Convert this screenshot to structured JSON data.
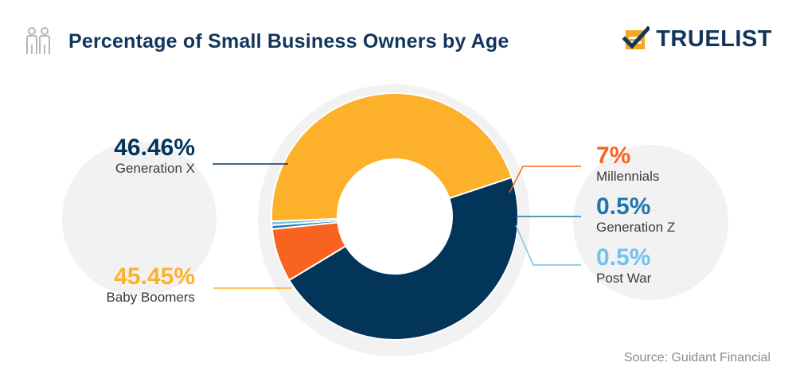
{
  "header": {
    "title": "Percentage of Small Business Owners by Age",
    "icon": "people-icon"
  },
  "brand": {
    "name": "TRUELIST",
    "icon": "checkmark-list-icon",
    "icon_colors": {
      "check": "#12355b",
      "list": "#f5a623"
    }
  },
  "source": "Source: Guidant Financial",
  "chart_data": {
    "type": "pie",
    "subtype": "donut",
    "start_angle_deg": 0,
    "direction": "clockwise",
    "slices": [
      {
        "name": "Generation X",
        "value": 46.46,
        "label": "46.46%",
        "color": "#03355b"
      },
      {
        "name": "Millennials",
        "value": 7,
        "label": "7%",
        "color": "#f86320"
      },
      {
        "name": "Generation Z",
        "value": 0.5,
        "label": "0.5%",
        "color": "#1f76ac"
      },
      {
        "name": "Post War",
        "value": 0.5,
        "label": "0.5%",
        "color": "#6ec3ef"
      },
      {
        "name": "Baby Boomers",
        "value": 45.45,
        "label": "45.45%",
        "color": "#fdb12b"
      }
    ]
  }
}
